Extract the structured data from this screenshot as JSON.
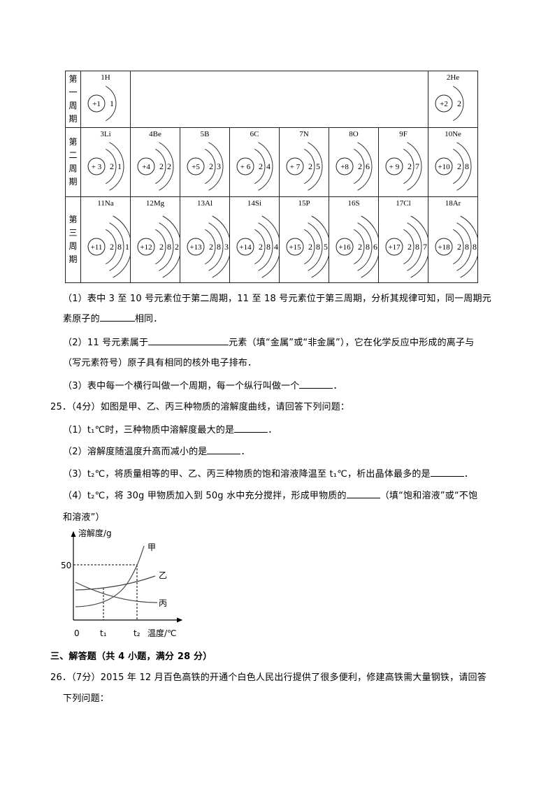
{
  "table": {
    "period_labels": [
      [
        "第",
        "一",
        "周",
        "期"
      ],
      [
        "第",
        "二",
        "周",
        "期"
      ],
      [
        "第",
        "三",
        "周",
        "期"
      ]
    ],
    "period1": [
      {
        "label": "1H",
        "charge": "+1",
        "shells": [
          "1"
        ]
      },
      {
        "label": "2He",
        "charge": "+2",
        "shells": [
          "2"
        ]
      }
    ],
    "period2": [
      {
        "label": "3Li",
        "charge": "+ 3",
        "shells": [
          "2",
          "1"
        ]
      },
      {
        "label": "4Be",
        "charge": "+4",
        "shells": [
          "2",
          "2"
        ]
      },
      {
        "label": "5B",
        "charge": "+5",
        "shells": [
          "2",
          "3"
        ]
      },
      {
        "label": "6C",
        "charge": "+ 6",
        "shells": [
          "2",
          "4"
        ]
      },
      {
        "label": "7N",
        "charge": "+ 7",
        "shells": [
          "2",
          "5"
        ]
      },
      {
        "label": "8O",
        "charge": "+8",
        "shells": [
          "2",
          "6"
        ]
      },
      {
        "label": "9F",
        "charge": "+ 9",
        "shells": [
          "2",
          "7"
        ]
      },
      {
        "label": "10Ne",
        "charge": "+10",
        "shells": [
          "2",
          "8"
        ]
      }
    ],
    "period3": [
      {
        "label": "11Na",
        "charge": "+11",
        "shells": [
          "2",
          "8",
          "1"
        ]
      },
      {
        "label": "12Mg",
        "charge": "+12",
        "shells": [
          "2",
          "8",
          "2"
        ]
      },
      {
        "label": "13Al",
        "charge": "+13",
        "shells": [
          "2",
          "8",
          "3"
        ]
      },
      {
        "label": "14Si",
        "charge": "+14",
        "shells": [
          "2",
          "8",
          "4"
        ]
      },
      {
        "label": "15P",
        "charge": "+15",
        "shells": [
          "2",
          "8",
          "5"
        ]
      },
      {
        "label": "16S",
        "charge": "+16",
        "shells": [
          "2",
          "8",
          "6"
        ]
      },
      {
        "label": "17Cl",
        "charge": "+17",
        "shells": [
          "2",
          "8",
          "7"
        ]
      },
      {
        "label": "18Ar",
        "charge": "+18",
        "shells": [
          "2",
          "8",
          "8"
        ]
      }
    ]
  },
  "q24": {
    "p1a": "（1）表中 3 至 10 号元素位于第二周期，11 至 18 号元素位于第三周期，分析其规律可知，同一周期元",
    "p1b_pre": "素原子的",
    "p1b_post": "相同．",
    "p2a_pre": "（2）11 号元素属于",
    "p2a_post": "元素（填“金属”或“非金属”），它在化学反应中形成的离子与",
    "p2b": "（写元素符号）原子具有相同的核外电子排布．",
    "p3_pre": "（3）表中每一个横行叫做一个周期，每一个纵行叫做一个",
    "p3_post": "．"
  },
  "q25": {
    "title": "25．（4分）如图是甲、乙、丙三种物质的溶解度曲线，请回答下列问题：",
    "s1_pre": "（1）t₁℃时，三种物质中溶解度最大的是",
    "s1_post": "．",
    "s2_pre": "（2）溶解度随温度升高而减小的是",
    "s2_post": "．",
    "s3_pre": "（3）t₂℃，将质量相等的甲、乙、丙三种物质的饱和溶液降温至 t₁℃，析出晶体最多的是",
    "s3_post": "．",
    "s4_pre": "（4）t₂℃，将 30g 甲物质加入到 50g 水中充分搅拌，形成甲物质的",
    "s4_post": "（填“饱和溶液”或“不饱",
    "s4b": "和溶液”）",
    "figure": {
      "ylabel": "溶解度/g",
      "xlabel": "温度/℃",
      "y_tick": "50",
      "origin": "0",
      "t1": "t₁",
      "t2": "t₂",
      "series": [
        "甲",
        "乙",
        "丙"
      ]
    }
  },
  "section3": {
    "heading": "三、解答题（共 4 小题，满分 28 分）"
  },
  "q26": {
    "line1": "26．（7分）2015 年 12 月百色高铁的开通个白色人民出行提供了很多便利，修建高铁需大量钢铁，请回答",
    "line2": "下列问题："
  }
}
